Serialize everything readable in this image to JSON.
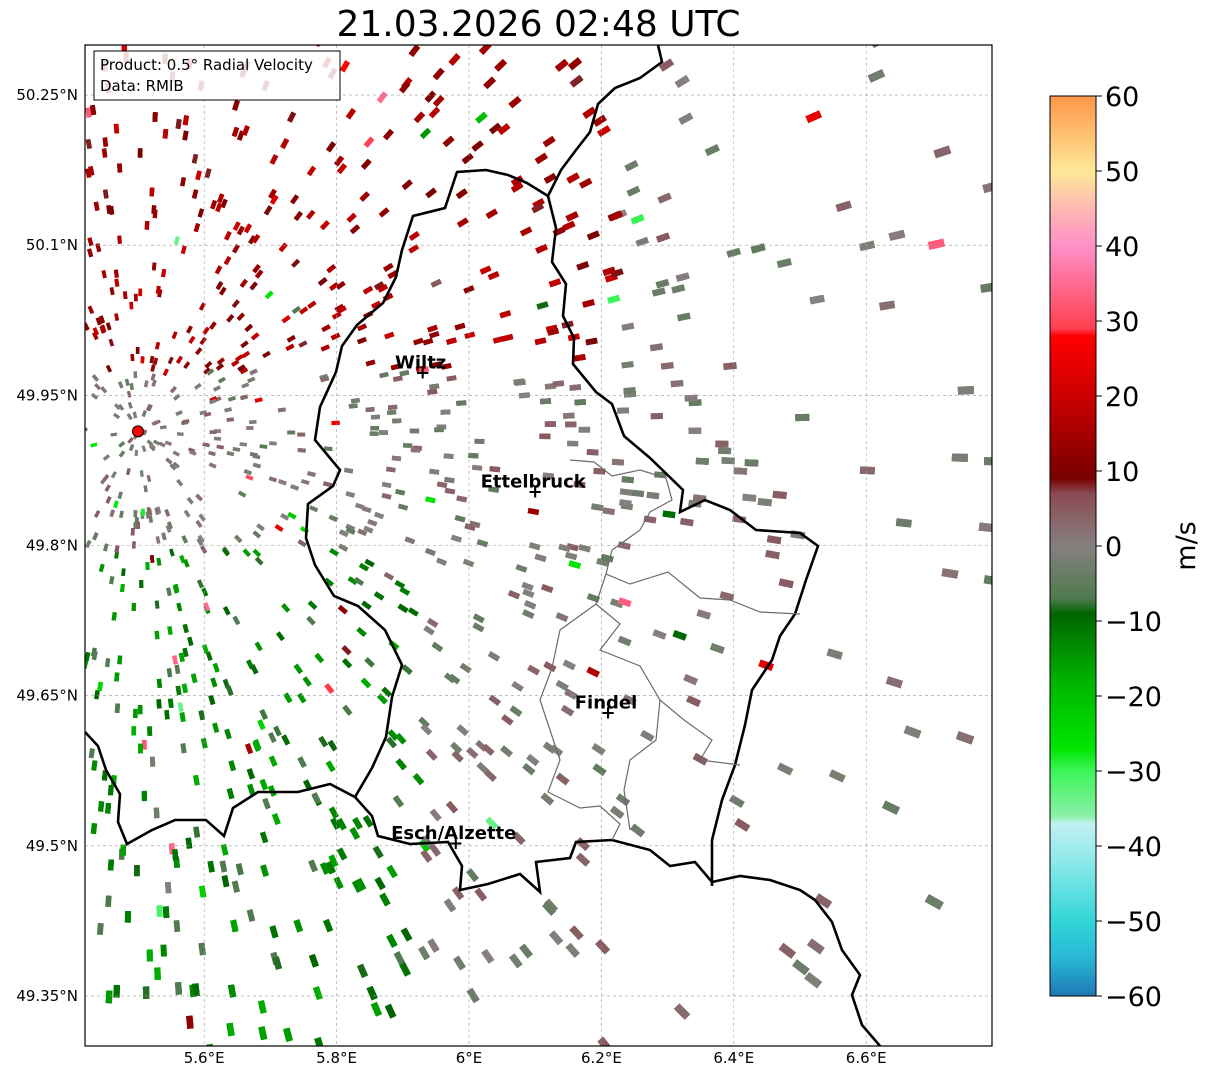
{
  "title": "21.03.2026 02:48 UTC",
  "info_box": {
    "product": "Product: 0.5° Radial Velocity",
    "source": "Data: RMIB"
  },
  "map": {
    "lon_range": [
      5.42,
      6.79
    ],
    "lat_range": [
      49.3,
      50.3
    ],
    "x_ticks": [
      {
        "value": 5.6,
        "label": "5.6°E"
      },
      {
        "value": 5.8,
        "label": "5.8°E"
      },
      {
        "value": 6.0,
        "label": "6°E"
      },
      {
        "value": 6.2,
        "label": "6.2°E"
      },
      {
        "value": 6.4,
        "label": "6.4°E"
      },
      {
        "value": 6.6,
        "label": "6.6°E"
      }
    ],
    "y_ticks": [
      {
        "value": 50.25,
        "label": "50.25°N"
      },
      {
        "value": 50.1,
        "label": "50.1°N"
      },
      {
        "value": 49.95,
        "label": "49.95°N"
      },
      {
        "value": 49.8,
        "label": "49.8°N"
      },
      {
        "value": 49.65,
        "label": "49.65°N"
      },
      {
        "value": 49.5,
        "label": "49.5°N"
      },
      {
        "value": 49.35,
        "label": "49.35°N"
      }
    ],
    "radar_site": {
      "lon": 5.5,
      "lat": 49.914
    },
    "cities": [
      {
        "name": "Wiltz",
        "lon": 5.93,
        "lat": 49.967
      },
      {
        "name": "Ettelbruck",
        "lon": 6.1,
        "lat": 49.848
      },
      {
        "name": "Findel",
        "lon": 6.21,
        "lat": 49.627
      },
      {
        "name": "Esch/Alzette",
        "lon": 5.98,
        "lat": 49.497
      }
    ]
  },
  "colorbar": {
    "unit": "m/s",
    "min": -60,
    "max": 60,
    "ticks": [
      {
        "value": 60,
        "label": "60"
      },
      {
        "value": 50,
        "label": "50"
      },
      {
        "value": 40,
        "label": "40"
      },
      {
        "value": 30,
        "label": "30"
      },
      {
        "value": 20,
        "label": "20"
      },
      {
        "value": 10,
        "label": "10"
      },
      {
        "value": 0,
        "label": "0"
      },
      {
        "value": -10,
        "label": "−10"
      },
      {
        "value": -20,
        "label": "−20"
      },
      {
        "value": -30,
        "label": "−30"
      },
      {
        "value": -40,
        "label": "−40"
      },
      {
        "value": -50,
        "label": "−50"
      },
      {
        "value": -60,
        "label": "−60"
      }
    ],
    "color_stops": [
      {
        "v": -60,
        "c": "#1f78b4"
      },
      {
        "v": -55,
        "c": "#29b6d6"
      },
      {
        "v": -50,
        "c": "#32d6d8"
      },
      {
        "v": -42,
        "c": "#8ee9ea"
      },
      {
        "v": -37,
        "c": "#c2f0f2"
      },
      {
        "v": -36,
        "c": "#8af0a8"
      },
      {
        "v": -30,
        "c": "#3cf55a"
      },
      {
        "v": -27,
        "c": "#00e600"
      },
      {
        "v": -18,
        "c": "#00b300"
      },
      {
        "v": -9,
        "c": "#006400"
      },
      {
        "v": -7,
        "c": "#4e7a4e"
      },
      {
        "v": 0,
        "c": "#868080"
      },
      {
        "v": 7,
        "c": "#8a4a52"
      },
      {
        "v": 9,
        "c": "#780000"
      },
      {
        "v": 20,
        "c": "#cc0000"
      },
      {
        "v": 28,
        "c": "#ff0000"
      },
      {
        "v": 29,
        "c": "#ff4050"
      },
      {
        "v": 40,
        "c": "#ff90c8"
      },
      {
        "v": 44,
        "c": "#ffb0b8"
      },
      {
        "v": 50,
        "c": "#ffe898"
      },
      {
        "v": 60,
        "c": "#ff9648"
      }
    ]
  }
}
